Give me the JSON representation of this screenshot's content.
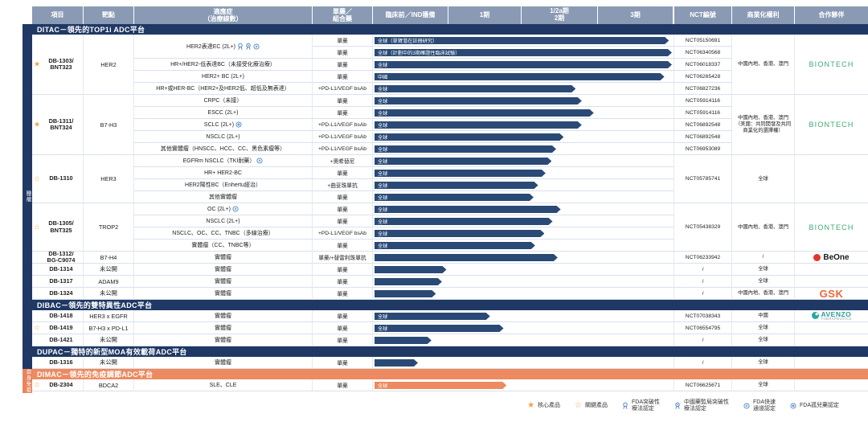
{
  "header": {
    "project": "項目",
    "target": "靶點",
    "indication": "適應症\n（治療線數）",
    "combo": "單藥／\n組合藥",
    "preclinical": "臨床前／IND獲備",
    "phase1": "1期",
    "phase12a": "1/2a期",
    "phase2": "2期",
    "phase3": "3期",
    "nct": "NCT編號",
    "rights": "商業化權利",
    "partner": "合作夥伴"
  },
  "colors": {
    "navy": "#1f3864",
    "orange": "#ed8a5f",
    "bar": "#2a4a75",
    "gold": "#f0a33c",
    "header_bg": "#8a9ab4",
    "icon_blue": "#4e86c4"
  },
  "zones": [
    {
      "strip": {
        "label": "腫瘤",
        "color": "#1f3864"
      },
      "sections": [
        {
          "band": {
            "label": "DITAC－領先的TOP1i ADC平台",
            "color": "#1f3864"
          },
          "groups": [
            {
              "star": "solid",
              "project": "DB-1303/\nBNT323",
              "target": "HER2",
              "rights": "中國內地、香港、澳門",
              "partner": {
                "style": "biontech",
                "name": "BIONTECH"
              },
              "rows": [
                {
                  "indication": "HER2表達EC (2L+)",
                  "icons": [
                    "fda-btd",
                    "china-btd",
                    "fda-fast-track"
                  ],
                  "ind_span": 2,
                  "combo": "單藥",
                  "bar": {
                    "label": "全球（單臂潛在註冊研究）",
                    "end": 0.99
                  },
                  "nct": "NCT05150691"
                },
                {
                  "ind_skip": true,
                  "combo": "單藥",
                  "bar": {
                    "label": "全球（計劃中的3期確證性臨床試驗）",
                    "end": 1.0
                  },
                  "nct": "NCT06340568"
                },
                {
                  "indication": "HR+/HER2-低表達BC（未接受化療治療）",
                  "combo": "單藥",
                  "bar": {
                    "label": "全球",
                    "end": 1.0
                  },
                  "nct": "NCT06018337"
                },
                {
                  "indication": "HER2+ BC (2L+)",
                  "combo": "單藥",
                  "bar": {
                    "label": "中國",
                    "end": 0.975
                  },
                  "nct": "NCT06265428"
                },
                {
                  "indication": "HR+或HER-BC（HER2+及HER2低、超低及無表達）",
                  "combo": "+PD-L1/VEGF bsAb",
                  "bar": {
                    "label": "全球",
                    "end": 0.68
                  },
                  "nct": "NCT06827236"
                }
              ]
            },
            {
              "star": "solid",
              "project": "DB-1311/\nBNT324",
              "target": "B7-H3",
              "rights": "中國內地、香港、澳門（美國：共同開發及共同商業化的選擇權）",
              "partner": {
                "style": "biontech",
                "name": "BIONTECH"
              },
              "rows": [
                {
                  "indication": "CRPC（未接）",
                  "combo": "單藥",
                  "bar": {
                    "label": "全球",
                    "end": 0.7
                  },
                  "nct": "NCT05914116"
                },
                {
                  "indication": "ESCC (2L+)",
                  "combo": "單藥",
                  "bar": {
                    "label": "全球",
                    "end": 0.74
                  },
                  "nct": "NCT05914116"
                },
                {
                  "indication": "SCLC (2L+)",
                  "icons": [
                    "fda-orphan"
                  ],
                  "combo": "+PD-L1/VEGF bsAb",
                  "bar": {
                    "label": "全球",
                    "end": 0.7
                  },
                  "nct": "NCT06892548"
                },
                {
                  "indication": "NSCLC (2L+)",
                  "combo": "+PD-L1/VEGF bsAb",
                  "bar": {
                    "label": "全球",
                    "end": 0.64
                  },
                  "nct": "NCT06892548"
                },
                {
                  "indication": "其他實體瘤（HNSCC、HCC、CC、黑色素瘤等）",
                  "combo": "+PD-L1/VEGF bsAb",
                  "bar": {
                    "label": "全球",
                    "end": 0.615
                  },
                  "nct": "NCT06953089"
                }
              ]
            },
            {
              "star": "outline",
              "project": "DB-1310",
              "target": "HER3",
              "nct": "NCT05785741",
              "rights": "全球",
              "partner": null,
              "rows": [
                {
                  "indication": "EGFRm NSCLC（TKI耐藥）",
                  "icons": [
                    "fda-fast-track"
                  ],
                  "combo": "+奧希替尼",
                  "bar": {
                    "label": "全球",
                    "end": 0.6
                  }
                },
                {
                  "indication": "HR+ HER2-BC",
                  "combo": "單藥",
                  "bar": {
                    "label": "全球",
                    "end": 0.58
                  }
                },
                {
                  "indication": "HER2陽性BC（Enhertu經治）",
                  "combo": "+曲妥珠單抗",
                  "bar": {
                    "label": "全球",
                    "end": 0.555
                  }
                },
                {
                  "indication": "其他實體瘤",
                  "combo": "單藥",
                  "bar": {
                    "label": "全球",
                    "end": 0.54
                  }
                }
              ]
            },
            {
              "star": "outline",
              "project": "DB-1305/\nBNT325",
              "target": "TROP2",
              "nct": "NCT05438329",
              "rights": "中國內地、香港、澳門",
              "partner": {
                "style": "biontech",
                "name": "BIONTECH"
              },
              "rows": [
                {
                  "indication": "OC (2L+)",
                  "icons": [
                    "fda-fast-track"
                  ],
                  "combo": "單藥",
                  "bar": {
                    "label": "全球",
                    "end": 0.63
                  }
                },
                {
                  "indication": "NSCLC (2L+)",
                  "combo": "單藥",
                  "bar": {
                    "label": "全球",
                    "end": 0.603
                  }
                },
                {
                  "indication": "NSCLC、OC、CC、TNBC（多線治療）",
                  "combo": "+PD-L1/VEGF bsAb",
                  "bar": {
                    "label": "全球",
                    "end": 0.576
                  }
                },
                {
                  "indication": "實體瘤（CC、TNBC等）",
                  "combo": "單藥",
                  "bar": {
                    "label": "全球",
                    "end": 0.545
                  }
                }
              ]
            },
            {
              "star": null,
              "project": "DB-1312/\nBG-C9074",
              "target": "B7-H4",
              "nct": "NCT06233942",
              "rights": "/",
              "partner": {
                "style": "beone",
                "name": "BeOne"
              },
              "rows": [
                {
                  "indication": "實體瘤",
                  "combo": "單藥/+替雷利珠單抗",
                  "bar": {
                    "label": "",
                    "end": 0.62
                  }
                }
              ]
            },
            {
              "star": null,
              "project": "DB-1314",
              "target": "未公開",
              "nct": "/",
              "rights": "全球",
              "partner": null,
              "rows": [
                {
                  "indication": "實體瘤",
                  "combo": "單藥",
                  "bar": {
                    "label": "",
                    "end": 0.25
                  }
                }
              ]
            },
            {
              "star": null,
              "project": "DB-1317",
              "target": "ADAM9",
              "nct": "/",
              "rights": "全球",
              "partner": null,
              "rows": [
                {
                  "indication": "實體瘤",
                  "combo": "單藥",
                  "bar": {
                    "label": "",
                    "end": 0.235
                  }
                }
              ]
            },
            {
              "star": null,
              "project": "DB-1324",
              "target": "未公開",
              "nct": "/",
              "rights": "中國內地、香港、澳門",
              "partner": {
                "style": "gsk",
                "name": "GSK"
              },
              "rows": [
                {
                  "indication": "實體瘤",
                  "combo": "單藥",
                  "bar": {
                    "label": "",
                    "end": 0.215
                  }
                }
              ]
            }
          ]
        },
        {
          "band": {
            "label": "DIBAC－領先的雙特異性ADC平台",
            "color": "#1f3864"
          },
          "groups": [
            {
              "star": null,
              "project": "DB-1418",
              "target": "HER3 x EGFR",
              "nct": "NCT07038343",
              "rights": "中國",
              "partner": {
                "style": "avenzo",
                "name": "AVENZO",
                "sub": "THERAPEUTICS"
              },
              "rows": [
                {
                  "indication": "實體瘤",
                  "combo": "單藥",
                  "bar": {
                    "label": "全球",
                    "end": 0.395
                  }
                }
              ]
            },
            {
              "star": "outline",
              "project": "DB-1419",
              "target": "B7-H3 x PD-L1",
              "nct": "NCT06554795",
              "rights": "全球",
              "partner": null,
              "rows": [
                {
                  "indication": "實體瘤",
                  "combo": "單藥",
                  "bar": {
                    "label": "全球",
                    "end": 0.44
                  }
                }
              ]
            },
            {
              "star": null,
              "project": "DB-1421",
              "target": "未公開",
              "nct": "/",
              "rights": "全球",
              "partner": null,
              "rows": [
                {
                  "indication": "實體瘤",
                  "combo": "單藥",
                  "bar": {
                    "label": "",
                    "end": 0.2
                  }
                }
              ]
            }
          ]
        },
        {
          "band": {
            "label": "DUPAC－獨特的新型MOA有效載荷ADC平台",
            "color": "#1f3864"
          },
          "groups": [
            {
              "star": null,
              "project": "DB-1316",
              "target": "未公開",
              "nct": "/",
              "rights": "全球",
              "partner": null,
              "rows": [
                {
                  "indication": "實體瘤",
                  "combo": "單藥",
                  "bar": {
                    "label": "",
                    "end": 0.155
                  }
                }
              ]
            }
          ]
        }
      ]
    },
    {
      "strip": {
        "label": "自身免疫",
        "color": "#e8845c"
      },
      "sections": [
        {
          "band": {
            "label": "DIMAC－領先的免疫調節ADC平台",
            "color": "#ed8a5f"
          },
          "groups": [
            {
              "star": "outline",
              "project": "DB-2304",
              "target": "BDCA2",
              "nct": "NCT06625671",
              "rights": "全球",
              "partner": null,
              "rows": [
                {
                  "indication": "SLE、CLE",
                  "combo": "單藥",
                  "bar": {
                    "label": "全球",
                    "end": 0.45,
                    "color": "#ed8a5f"
                  }
                }
              ]
            }
          ]
        }
      ]
    }
  ],
  "legend": [
    {
      "icon": "star-solid",
      "label": "核心產品"
    },
    {
      "icon": "star-outline",
      "label": "關鍵產品"
    },
    {
      "icon": "fda-btd",
      "label": "FDA突破性\n療法認定"
    },
    {
      "icon": "china-btd",
      "label": "中國藥監局突破性\n療法認定"
    },
    {
      "icon": "fda-fast-track",
      "label": "FDA快速\n通道認定"
    },
    {
      "icon": "fda-orphan",
      "label": "FDA孤兒藥認定"
    }
  ],
  "chart_data": {
    "type": "gantt",
    "x_axis": [
      "臨床前／IND獲備",
      "1期",
      "1/2a期",
      "2期",
      "3期"
    ],
    "track_range": [
      0,
      1
    ],
    "bars": [
      {
        "project": "DB-1303/BNT323",
        "indication": "HER2表達EC (2L+)",
        "scope": "全球（單臂潛在註冊研究）",
        "progress": 0.99
      },
      {
        "project": "DB-1303/BNT323",
        "indication": "HER2表達EC (2L+)",
        "scope": "全球（計劃中的3期確證性臨床試驗）",
        "progress": 1.0
      },
      {
        "project": "DB-1303/BNT323",
        "indication": "HR+/HER2-低表達BC（未接受化療治療）",
        "scope": "全球",
        "progress": 1.0
      },
      {
        "project": "DB-1303/BNT323",
        "indication": "HER2+ BC (2L+)",
        "scope": "中國",
        "progress": 0.975
      },
      {
        "project": "DB-1303/BNT323",
        "indication": "HR+或HER-BC（HER2+及HER2低、超低及無表達）",
        "scope": "全球",
        "progress": 0.68
      },
      {
        "project": "DB-1311/BNT324",
        "indication": "CRPC（未接）",
        "scope": "全球",
        "progress": 0.7
      },
      {
        "project": "DB-1311/BNT324",
        "indication": "ESCC (2L+)",
        "scope": "全球",
        "progress": 0.74
      },
      {
        "project": "DB-1311/BNT324",
        "indication": "SCLC (2L+)",
        "scope": "全球",
        "progress": 0.7
      },
      {
        "project": "DB-1311/BNT324",
        "indication": "NSCLC (2L+)",
        "scope": "全球",
        "progress": 0.64
      },
      {
        "project": "DB-1311/BNT324",
        "indication": "其他實體瘤（HNSCC、HCC、CC、黑色素瘤等）",
        "scope": "全球",
        "progress": 0.615
      },
      {
        "project": "DB-1310",
        "indication": "EGFRm NSCLC（TKI耐藥）",
        "scope": "全球",
        "progress": 0.6
      },
      {
        "project": "DB-1310",
        "indication": "HR+ HER2-BC",
        "scope": "全球",
        "progress": 0.58
      },
      {
        "project": "DB-1310",
        "indication": "HER2陽性BC（Enhertu經治）",
        "scope": "全球",
        "progress": 0.555
      },
      {
        "project": "DB-1310",
        "indication": "其他實體瘤",
        "scope": "全球",
        "progress": 0.54
      },
      {
        "project": "DB-1305/BNT325",
        "indication": "OC (2L+)",
        "scope": "全球",
        "progress": 0.63
      },
      {
        "project": "DB-1305/BNT325",
        "indication": "NSCLC (2L+)",
        "scope": "全球",
        "progress": 0.603
      },
      {
        "project": "DB-1305/BNT325",
        "indication": "NSCLC、OC、CC、TNBC（多線治療）",
        "scope": "全球",
        "progress": 0.576
      },
      {
        "project": "DB-1305/BNT325",
        "indication": "實體瘤（CC、TNBC等）",
        "scope": "全球",
        "progress": 0.545
      },
      {
        "project": "DB-1312/BG-C9074",
        "indication": "實體瘤",
        "scope": "",
        "progress": 0.62
      },
      {
        "project": "DB-1314",
        "indication": "實體瘤",
        "scope": "",
        "progress": 0.25
      },
      {
        "project": "DB-1317",
        "indication": "實體瘤",
        "scope": "",
        "progress": 0.235
      },
      {
        "project": "DB-1324",
        "indication": "實體瘤",
        "scope": "",
        "progress": 0.215
      },
      {
        "project": "DB-1418",
        "indication": "實體瘤",
        "scope": "全球",
        "progress": 0.395
      },
      {
        "project": "DB-1419",
        "indication": "實體瘤",
        "scope": "全球",
        "progress": 0.44
      },
      {
        "project": "DB-1421",
        "indication": "實體瘤",
        "scope": "",
        "progress": 0.2
      },
      {
        "project": "DB-1316",
        "indication": "實體瘤",
        "scope": "",
        "progress": 0.155
      },
      {
        "project": "DB-2304",
        "indication": "SLE、CLE",
        "scope": "全球",
        "progress": 0.45
      }
    ]
  }
}
